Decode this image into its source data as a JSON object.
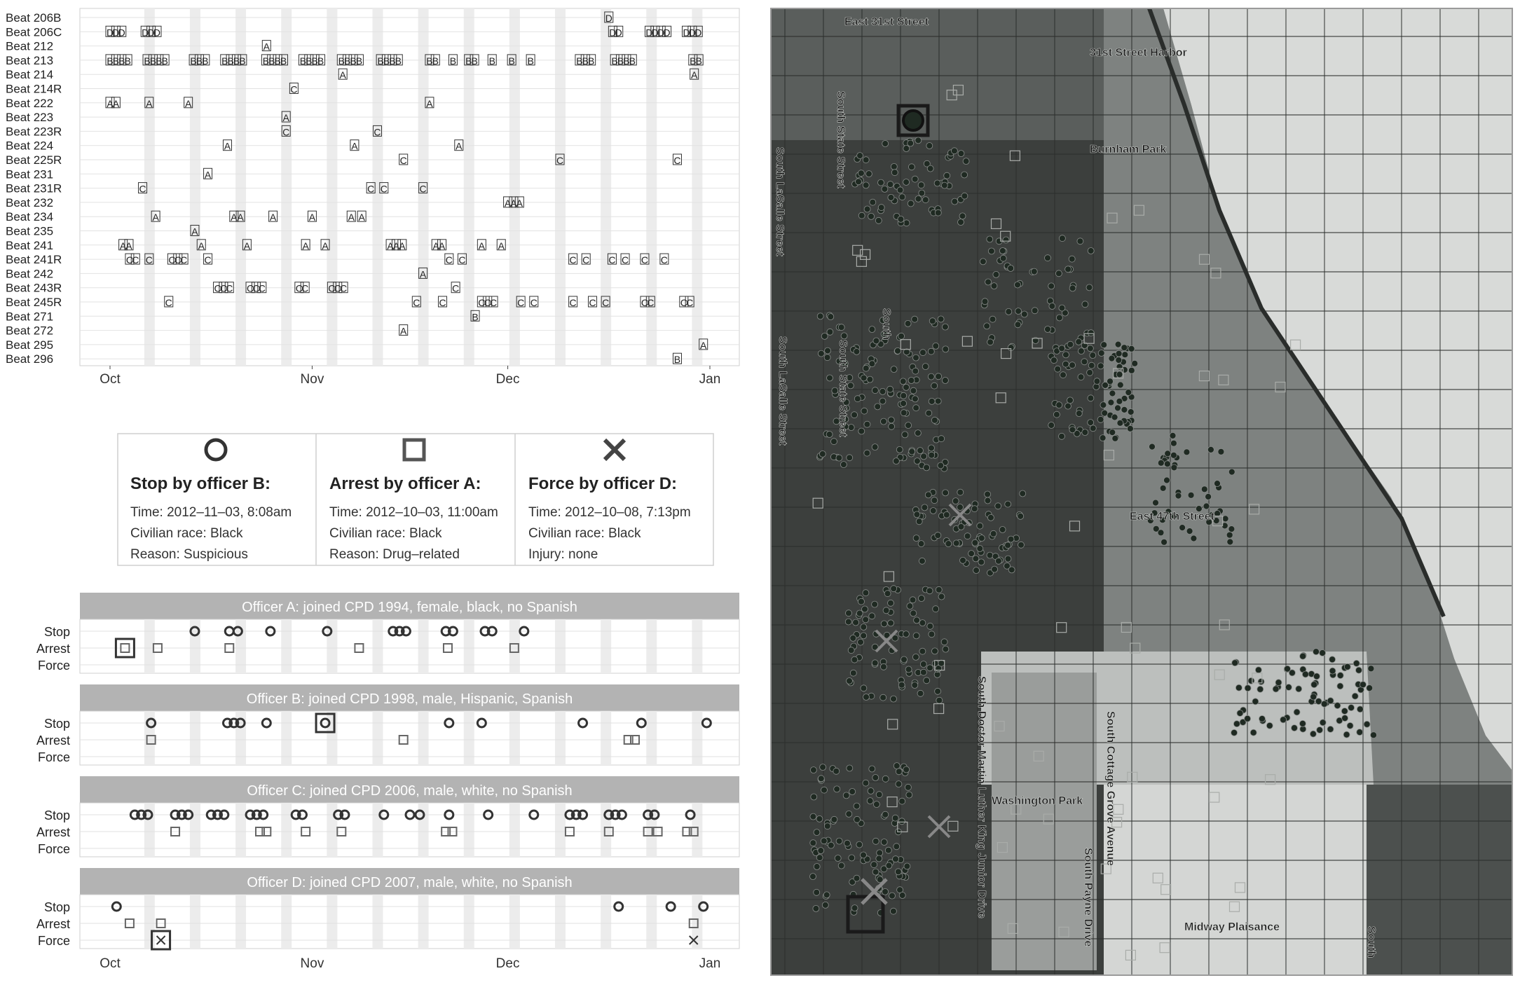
{
  "chart_data": [
    {
      "type": "scatter",
      "panel": "beat-timeline",
      "x_ticks": [
        "Oct",
        "Nov",
        "Dec",
        "Jan"
      ],
      "x_tick_days": [
        0,
        31,
        61,
        92
      ],
      "beats": [
        "Beat 206B",
        "Beat 206C",
        "Beat 212",
        "Beat 213",
        "Beat 214",
        "Beat 214R",
        "Beat 222",
        "Beat 223",
        "Beat 223R",
        "Beat 224",
        "Beat 225R",
        "Beat 231",
        "Beat 231R",
        "Beat 232",
        "Beat 234",
        "Beat 235",
        "Beat 241",
        "Beat 241R",
        "Beat 242",
        "Beat 243R",
        "Beat 245R",
        "Beat 271",
        "Beat 272",
        "Beat 295",
        "Beat 296"
      ],
      "events": [
        {
          "beat": "Beat 206B",
          "letter": "D",
          "days": [
            76.5
          ]
        },
        {
          "beat": "Beat 206C",
          "letter": "D",
          "days": [
            0,
            0.9,
            1.8,
            5.4,
            6.3,
            7.2,
            77.1,
            78,
            82.7,
            83.6,
            84.5,
            85.4,
            88.4,
            89.3,
            90.2
          ]
        },
        {
          "beat": "Beat 212",
          "letter": "A",
          "days": [
            24
          ]
        },
        {
          "beat": "Beat 213",
          "letter": "B",
          "days": [
            0,
            0.9,
            1.8,
            2.7,
            5.7,
            6.6,
            7.5,
            8.4,
            12.8,
            13.7,
            14.6,
            17.6,
            18.5,
            19.4,
            20.3,
            23.9,
            24.8,
            25.7,
            26.6,
            29.6,
            30.5,
            31.4,
            32.3,
            35.5,
            36.4,
            37.3,
            38.2,
            41.5,
            42.4,
            43.3,
            44.2,
            49,
            49.9,
            52.6,
            55,
            55.9,
            58.6,
            61.6,
            64.5,
            72,
            72.9,
            73.8,
            77.4,
            78.3,
            79.2,
            80.1,
            89.4,
            90.3
          ]
        },
        {
          "beat": "Beat 214",
          "letter": "A",
          "days": [
            35.7,
            89.6
          ]
        },
        {
          "beat": "Beat 214R",
          "letter": "C",
          "days": [
            28.2
          ]
        },
        {
          "beat": "Beat 222",
          "letter": "A",
          "days": [
            0,
            0.9,
            6,
            12,
            49
          ]
        },
        {
          "beat": "Beat 223",
          "letter": "A",
          "days": [
            27
          ]
        },
        {
          "beat": "Beat 223R",
          "letter": "C",
          "days": [
            27,
            41
          ]
        },
        {
          "beat": "Beat 224",
          "letter": "A",
          "days": [
            18,
            37.5,
            53.5
          ]
        },
        {
          "beat": "Beat 225R",
          "letter": "C",
          "days": [
            45,
            69,
            87
          ]
        },
        {
          "beat": "Beat 231",
          "letter": "A",
          "days": [
            15
          ]
        },
        {
          "beat": "Beat 231R",
          "letter": "C",
          "days": [
            5,
            40,
            42,
            48
          ]
        },
        {
          "beat": "Beat 232",
          "letter": "A",
          "days": [
            61,
            61.9,
            62.8
          ]
        },
        {
          "beat": "Beat 234",
          "letter": "A",
          "days": [
            7,
            19,
            20,
            25,
            31,
            37,
            38.6
          ]
        },
        {
          "beat": "Beat 235",
          "letter": "A",
          "days": [
            13
          ]
        },
        {
          "beat": "Beat 241",
          "letter": "A",
          "days": [
            2,
            2.9,
            14,
            21,
            30,
            33,
            43,
            43.9,
            44.8,
            50,
            50.9,
            57,
            60
          ]
        },
        {
          "beat": "Beat 241R",
          "letter": "C",
          "days": [
            3,
            3.9,
            6,
            9.5,
            10.4,
            11.3,
            15,
            52,
            54,
            71,
            73,
            77,
            79,
            82,
            85
          ]
        },
        {
          "beat": "Beat 242",
          "letter": "A",
          "days": [
            48
          ]
        },
        {
          "beat": "Beat 243R",
          "letter": "C",
          "days": [
            16.5,
            17.4,
            18.3,
            21.5,
            22.4,
            23.3,
            29,
            29.9,
            34,
            34.9,
            35.8,
            53
          ]
        },
        {
          "beat": "Beat 245R",
          "letter": "C",
          "days": [
            9,
            47,
            51,
            57,
            57.9,
            58.8,
            63,
            65,
            71,
            74,
            76,
            82,
            82.9,
            88,
            88.9
          ]
        },
        {
          "beat": "Beat 271",
          "letter": "B",
          "days": [
            56
          ]
        },
        {
          "beat": "Beat 272",
          "letter": "A",
          "days": [
            45
          ]
        },
        {
          "beat": "Beat 295",
          "letter": "A",
          "days": [
            91
          ]
        },
        {
          "beat": "Beat 296",
          "letter": "B",
          "days": [
            87
          ]
        }
      ]
    },
    {
      "type": "scatter",
      "panel": "officer-timelines",
      "x_ticks": [
        "Oct",
        "Nov",
        "Dec",
        "Jan"
      ],
      "x_tick_days": [
        0,
        31,
        61,
        92
      ],
      "row_labels": [
        "Stop",
        "Arrest",
        "Force"
      ],
      "officers": [
        {
          "title": "Officer A: joined CPD 1994, female, black, no Spanish",
          "stop": [
            13,
            18.3,
            19.6,
            24.6,
            33.3,
            43.4,
            44.4,
            45.4,
            51.5,
            52.6,
            57.5,
            58.6,
            63.5
          ],
          "arrest": [
            2.3,
            7.3,
            18.3,
            38.2,
            51.8,
            62
          ],
          "force": [],
          "highlight": {
            "row": "arrest",
            "day": 2.3
          }
        },
        {
          "title": "Officer B: joined CPD 1998, male, Hispanic, Spanish",
          "stop": [
            6.3,
            18,
            19,
            20,
            24,
            33,
            52,
            57,
            72.5,
            81.5,
            91.5
          ],
          "arrest": [
            6.3,
            45,
            79.5,
            80.5
          ],
          "force": [],
          "highlight": {
            "row": "stop",
            "day": 33
          }
        },
        {
          "title": "Officer C: joined CPD 2006, male, white, no Spanish",
          "stop": [
            3.8,
            4.8,
            5.8,
            10,
            11,
            12,
            15.5,
            16.5,
            17.5,
            21.5,
            22.5,
            23.5,
            28.5,
            29.5,
            35,
            36,
            42,
            46,
            47.5,
            52,
            58,
            65,
            70.5,
            71.5,
            72.5,
            76.5,
            77.5,
            78.5,
            82.5,
            83.5,
            89
          ],
          "arrest": [
            10,
            23,
            24,
            30,
            35.5,
            51.5,
            52.5,
            70.5,
            76.5,
            82.5,
            84,
            88.5,
            89.5
          ],
          "force": [],
          "highlight": null
        },
        {
          "title": "Officer D: joined CPD 2007, male, white, no Spanish",
          "stop": [
            1,
            78,
            86,
            91
          ],
          "arrest": [
            3,
            7.8,
            89.5
          ],
          "force": [
            7.8,
            89.5
          ],
          "highlight": {
            "row": "force",
            "day": 7.8
          }
        }
      ]
    },
    {
      "type": "scatter",
      "panel": "map",
      "street_labels": [
        "East 31st Street",
        "31st Street Harbor",
        "South State Street",
        "Burnham Park",
        "South LaSalle Street",
        "South",
        "South LaSalle Street",
        "South State Street",
        "East 47th Street",
        "South Doctor Martin Luther King Junior Drive",
        "South Cottage Grove Avenue",
        "Washington Park",
        "South Payne Drive",
        "Midway Plaisance",
        "South"
      ]
    }
  ],
  "legend": {
    "stop": {
      "title": "Stop by officer B:",
      "time": "Time: 2012–11–03, 8:08am",
      "race": "Civilian race: Black",
      "detail": "Reason: Suspicious"
    },
    "arrest": {
      "title": "Arrest by officer A:",
      "time": "Time: 2012–10–03, 11:00am",
      "race": "Civilian race: Black",
      "detail": "Reason: Drug–related"
    },
    "force": {
      "title": "Force by officer D:",
      "time": "Time: 2012–10–08, 7:13pm",
      "race": "Civilian race: Black",
      "detail": "Injury: none"
    }
  },
  "map_labels": {
    "east31": "East 31st Street",
    "harbor": "31st Street Harbor",
    "state_top": "South State Street",
    "burnham": "Burnham Park",
    "lasalle_top": "South LaSalle Street",
    "south_mid": "South",
    "lasalle_mid": "South LaSalle Street",
    "state_mid": "South State Street",
    "east47": "East 47th Street",
    "mlk": "South Doctor Martin Luther King Junior Drive",
    "cottage": "South Cottage Grove Avenue",
    "washington": "Washington Park",
    "payne": "South Payne Drive",
    "midway": "Midway Plaisance",
    "south_br": "South"
  },
  "colors": {
    "map_dark": "#3c3f3d",
    "map_mid": "#7e8280",
    "map_light": "#bcbfbd",
    "map_lighter": "#d4d6d4",
    "lake": "#d8dad8",
    "park": "#9a9d9b",
    "stripe": "#ececec",
    "strip_header": "#b3b3b3"
  }
}
